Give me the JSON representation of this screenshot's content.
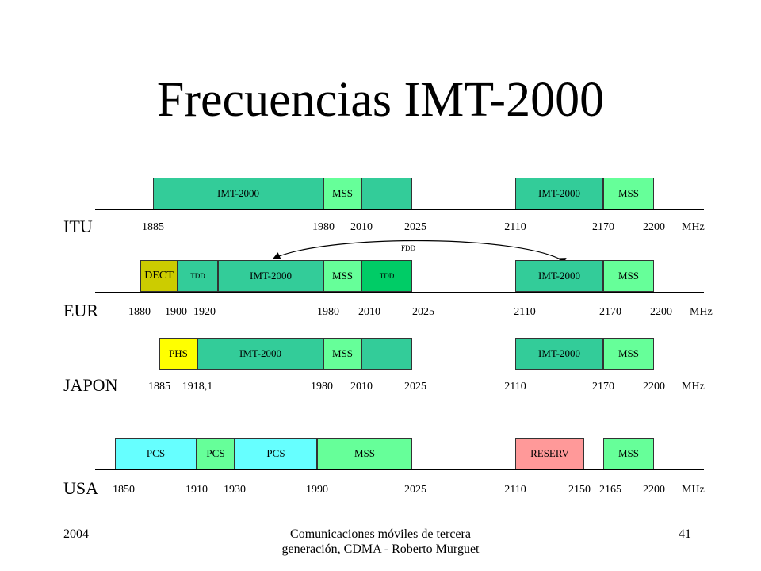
{
  "title": "Frecuencias IMT-2000",
  "fdd_label": "FDD",
  "unit": "MHz",
  "colors": {
    "imt": "#33cc99",
    "mss": "#66ff99",
    "tdd": "#00cc66",
    "dect": "#cccc00",
    "phs": "#ffff00",
    "pcs": "#66ffff",
    "reserv": "#ff9999"
  },
  "rows": [
    {
      "region": "ITU",
      "bands": [
        {
          "label": "IMT-2000",
          "color": "#33cc99"
        },
        {
          "label": "MSS",
          "color": "#66ff99"
        },
        {
          "label": "",
          "color": "#33cc99"
        },
        {
          "label": "IMT-2000",
          "color": "#33cc99"
        },
        {
          "label": "MSS",
          "color": "#66ff99"
        }
      ],
      "freqs": [
        "1885",
        "1980",
        "2010",
        "2025",
        "2110",
        "2170",
        "2200"
      ]
    },
    {
      "region": "EUR",
      "bands": [
        {
          "label": "DECT",
          "color": "#cccc00"
        },
        {
          "label": "TDD",
          "color": "#33cc99"
        },
        {
          "label": "IMT-2000",
          "color": "#33cc99"
        },
        {
          "label": "MSS",
          "color": "#66ff99"
        },
        {
          "label": "TDD",
          "color": "#00cc66"
        },
        {
          "label": "IMT-2000",
          "color": "#33cc99"
        },
        {
          "label": "MSS",
          "color": "#66ff99"
        }
      ],
      "freqs": [
        "1880",
        "1900",
        "1920",
        "1980",
        "2010",
        "2025",
        "2110",
        "2170",
        "2200"
      ]
    },
    {
      "region": "JAPON",
      "bands": [
        {
          "label": "PHS",
          "color": "#ffff00"
        },
        {
          "label": "IMT-2000",
          "color": "#33cc99"
        },
        {
          "label": "MSS",
          "color": "#66ff99"
        },
        {
          "label": "",
          "color": "#33cc99"
        },
        {
          "label": "IMT-2000",
          "color": "#33cc99"
        },
        {
          "label": "MSS",
          "color": "#66ff99"
        }
      ],
      "freqs": [
        "1885",
        "1918,1",
        "1980",
        "2010",
        "2025",
        "2110",
        "2170",
        "2200"
      ]
    },
    {
      "region": "USA",
      "bands": [
        {
          "label": "PCS",
          "color": "#66ffff"
        },
        {
          "label": "PCS",
          "color": "#66ff99"
        },
        {
          "label": "PCS",
          "color": "#66ffff"
        },
        {
          "label": "MSS",
          "color": "#66ff99"
        },
        {
          "label": "RESERV",
          "color": "#ff9999"
        },
        {
          "label": "MSS",
          "color": "#66ff99"
        }
      ],
      "freqs": [
        "1850",
        "1910",
        "1930",
        "1990",
        "2025",
        "2110",
        "2150",
        "2165",
        "2200"
      ]
    }
  ],
  "footer": {
    "left": "2004",
    "center": "Comunicaciones móviles de tercera generación, CDMA - Roberto Murguet",
    "right": "41"
  }
}
